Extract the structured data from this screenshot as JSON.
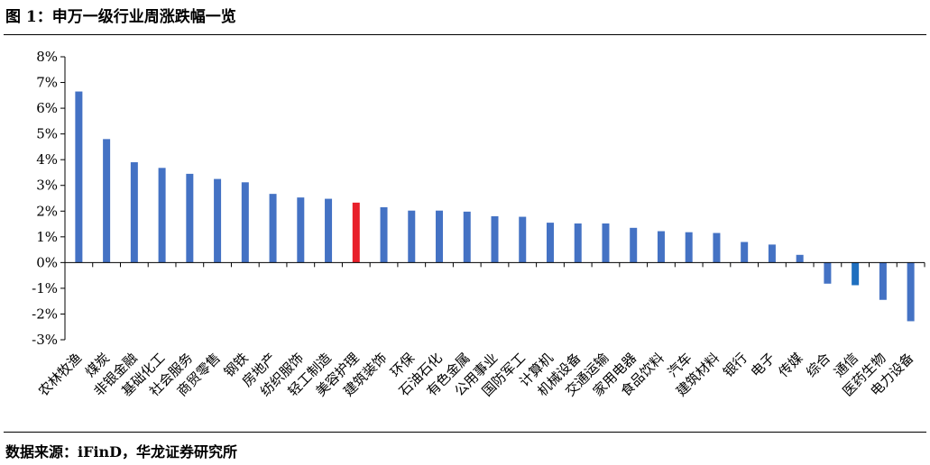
{
  "title": "图 1：申万一级行业周涨跌幅一览",
  "source": "数据来源：iFinD，华龙证券研究所",
  "colors": {
    "bar": "#4472C4",
    "highlight": "#E8202A",
    "alt": "#1F6FBF"
  },
  "chart_data": {
    "type": "bar",
    "categories": [
      "农林牧渔",
      "煤炭",
      "非银金融",
      "基础化工",
      "社会服务",
      "商贸零售",
      "钢铁",
      "房地产",
      "纺织服饰",
      "轻工制造",
      "美容护理",
      "建筑装饰",
      "环保",
      "石油石化",
      "有色金属",
      "公用事业",
      "国防军工",
      "计算机",
      "机械设备",
      "交通运输",
      "家用电器",
      "食品饮料",
      "汽车",
      "建筑材料",
      "银行",
      "电子",
      "传媒",
      "综合",
      "通信",
      "医药生物",
      "电力设备"
    ],
    "values": [
      6.65,
      4.8,
      3.9,
      3.68,
      3.45,
      3.25,
      3.12,
      2.67,
      2.53,
      2.48,
      2.33,
      2.15,
      2.02,
      2.02,
      1.98,
      1.8,
      1.78,
      1.55,
      1.52,
      1.52,
      1.35,
      1.22,
      1.18,
      1.15,
      0.8,
      0.7,
      0.3,
      -0.82,
      -0.88,
      -1.45,
      -2.28
    ],
    "highlight_index": 10,
    "alt_color_indices": [
      28
    ],
    "ylim": [
      -3,
      8
    ],
    "yticks": [
      "-3%",
      "-2%",
      "-1%",
      "0%",
      "1%",
      "2%",
      "3%",
      "4%",
      "5%",
      "6%",
      "7%",
      "8%"
    ],
    "xlabel": "",
    "ylabel": "",
    "grid": false,
    "legend": "none"
  }
}
